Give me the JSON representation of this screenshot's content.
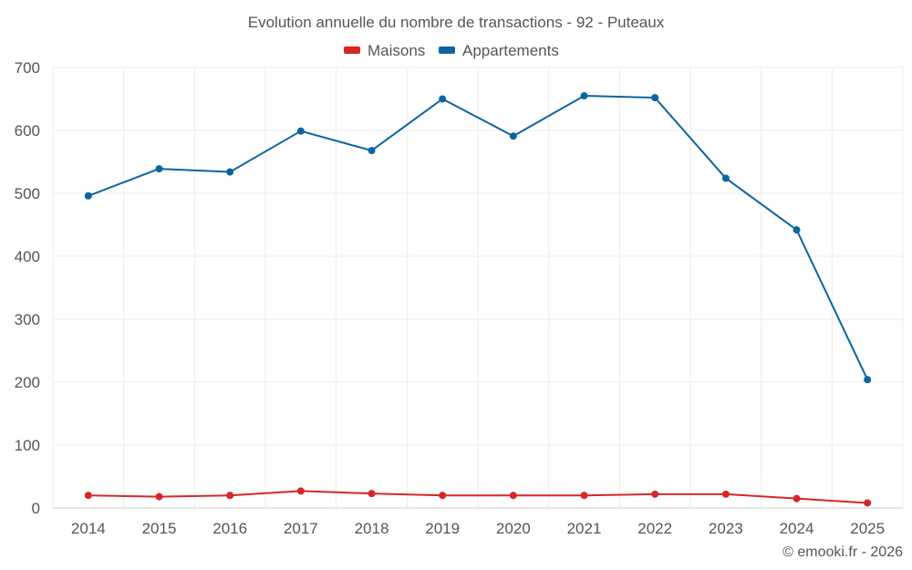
{
  "chart_data": {
    "type": "line",
    "title": "Evolution annuelle du nombre de transactions - 92 - Puteaux",
    "categories": [
      "2014",
      "2015",
      "2016",
      "2017",
      "2018",
      "2019",
      "2020",
      "2021",
      "2022",
      "2023",
      "2024",
      "2025"
    ],
    "series": [
      {
        "name": "Maisons",
        "color": "#d62728",
        "values": [
          20,
          18,
          20,
          27,
          23,
          20,
          20,
          20,
          22,
          22,
          15,
          8
        ]
      },
      {
        "name": "Appartements",
        "color": "#0b64a0",
        "values": [
          496,
          539,
          534,
          599,
          568,
          650,
          591,
          655,
          652,
          524,
          442,
          204
        ]
      }
    ],
    "yticks": [
      0,
      100,
      200,
      300,
      400,
      500,
      600,
      700
    ],
    "ylim": [
      0,
      700
    ],
    "xlabel": "",
    "ylabel": "",
    "grid": true,
    "legend_position": "top-center"
  },
  "footer": "© emooki.fr - 2026"
}
